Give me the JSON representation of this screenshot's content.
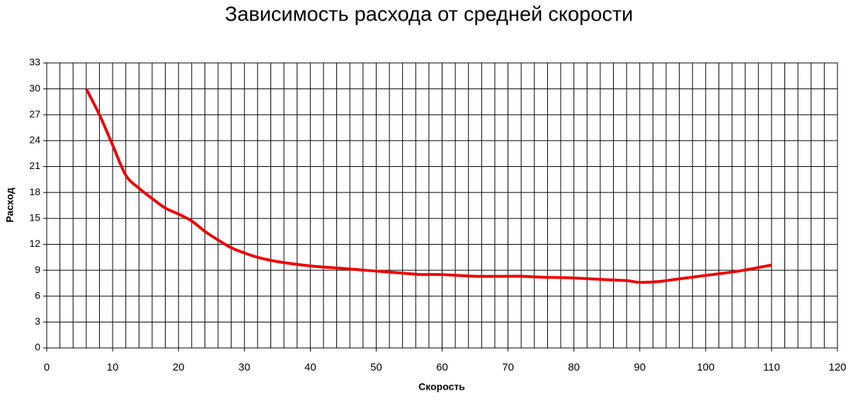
{
  "chart_data": {
    "type": "line",
    "title": "Зависимость расхода от средней скорости",
    "x_label": "Скорость",
    "y_label": "Расход",
    "x": [
      6,
      8,
      10,
      12,
      14,
      16,
      18,
      20,
      22,
      24,
      26,
      28,
      30,
      32,
      35,
      40,
      45,
      50,
      55,
      57,
      60,
      65,
      70,
      72,
      75,
      80,
      85,
      88,
      90,
      93,
      95,
      100,
      105,
      110
    ],
    "series": [
      {
        "color": "#ee0000",
        "values": [
          30,
          27,
          23.5,
          20,
          18.5,
          17.3,
          16.2,
          15.5,
          14.7,
          13.5,
          12.5,
          11.6,
          11,
          10.5,
          10,
          9.5,
          9.2,
          8.9,
          8.6,
          8.5,
          8.5,
          8.3,
          8.3,
          8.3,
          8.2,
          8.1,
          7.9,
          7.8,
          7.6,
          7.7,
          7.9,
          8.4,
          8.9,
          9.6
        ]
      }
    ],
    "xlim": [
      0,
      120
    ],
    "xticks": [
      0,
      10,
      20,
      30,
      40,
      50,
      60,
      70,
      80,
      90,
      100,
      110,
      120
    ],
    "ylim": [
      0,
      33
    ],
    "yticks": [
      0,
      3,
      6,
      9,
      12,
      15,
      18,
      21,
      24,
      27,
      30,
      33
    ],
    "x_minor_step": 2,
    "grid": true
  }
}
